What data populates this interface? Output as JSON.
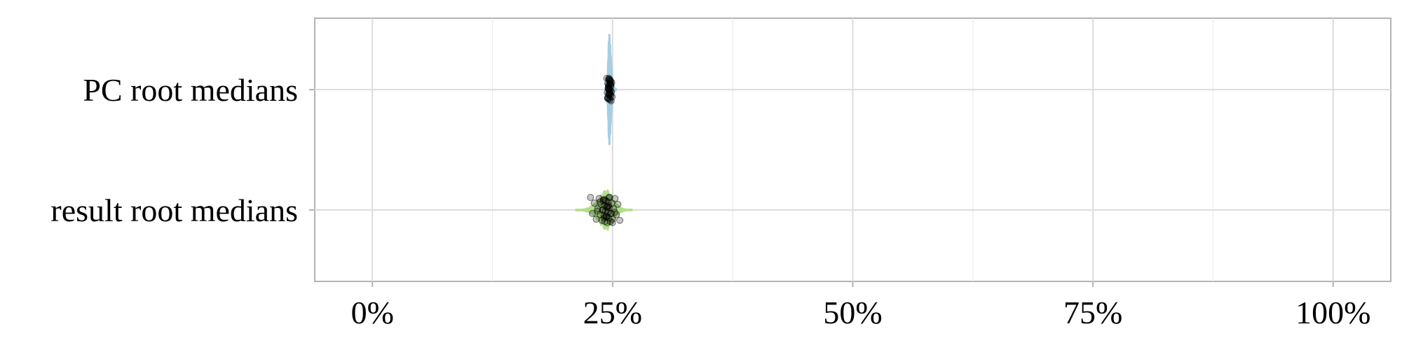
{
  "chart_data": {
    "type": "violin",
    "orientation": "horizontal",
    "categories": [
      "PC root medians",
      "result root medians"
    ],
    "x_ticks": [
      {
        "value": 0,
        "label": "0%"
      },
      {
        "value": 0.25,
        "label": "25%"
      },
      {
        "value": 0.5,
        "label": "50%"
      },
      {
        "value": 0.75,
        "label": "75%"
      },
      {
        "value": 1.0,
        "label": "100%"
      }
    ],
    "x_minor_ticks": [
      0.125,
      0.375,
      0.625,
      0.875
    ],
    "xlim": [
      -0.06,
      1.06
    ],
    "grid": true,
    "series": [
      {
        "category": "PC root medians",
        "color": "#a6cee3",
        "range": [
          0.2425,
          0.2535
        ],
        "center": 0.2465,
        "points": [
          0.244,
          0.2445,
          0.245,
          0.2452,
          0.2455,
          0.2458,
          0.246,
          0.2462,
          0.2464,
          0.2466,
          0.2468,
          0.247,
          0.2472,
          0.2474,
          0.2476,
          0.2478,
          0.248,
          0.2482,
          0.2485,
          0.2488,
          0.2491,
          0.2495,
          0.2455,
          0.2463,
          0.2471,
          0.2479,
          0.2447,
          0.2459,
          0.2467,
          0.2475,
          0.2483,
          0.2451,
          0.2469,
          0.2477,
          0.2461,
          0.2457
        ]
      },
      {
        "category": "result root medians",
        "color": "#b2df8a",
        "range": [
          0.212,
          0.27
        ],
        "center": 0.2435,
        "points": [
          0.227,
          0.229,
          0.231,
          0.233,
          0.2345,
          0.236,
          0.237,
          0.238,
          0.239,
          0.24,
          0.2405,
          0.241,
          0.2415,
          0.242,
          0.2425,
          0.243,
          0.2435,
          0.244,
          0.2445,
          0.245,
          0.2455,
          0.246,
          0.2465,
          0.247,
          0.248,
          0.249,
          0.25,
          0.251,
          0.2525,
          0.254,
          0.2555,
          0.2575,
          0.2395,
          0.2418,
          0.2438,
          0.2458,
          0.2478,
          0.2342,
          0.2402,
          0.2432,
          0.2452,
          0.2498,
          0.2522,
          0.2372,
          0.2412,
          0.2442,
          0.2462,
          0.2488
        ]
      }
    ]
  }
}
